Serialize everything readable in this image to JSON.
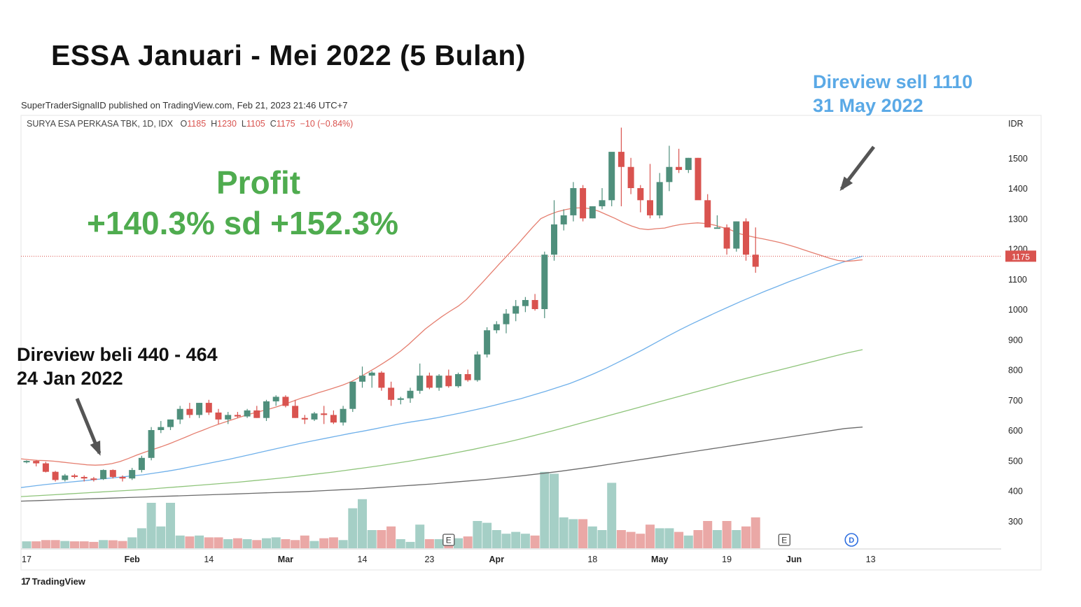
{
  "header": {
    "title": "ESSA Januari - Mei  2022 (5 Bulan)",
    "publisher": "SuperTraderSignalID published on TradingView.com, Feb 21, 2023 21:46 UTC+7",
    "symbol": "SURYA ESA PERKASA TBK, 1D, IDX",
    "ohlc_o_label": "O",
    "ohlc_o": "1185",
    "ohlc_h_label": "H",
    "ohlc_h": "1230",
    "ohlc_l_label": "L",
    "ohlc_l": "1105",
    "ohlc_c_label": "C",
    "ohlc_c": "1175",
    "ohlc_change": "−10 (−0.84%)"
  },
  "annotations": {
    "sell_line1": "Direview sell 1110",
    "sell_line2": "31 May 2022",
    "buy_line1": "Direview beli 440 - 464",
    "buy_line2": "24 Jan 2022",
    "profit_title": "Profit",
    "profit_range": "+140.3% sd +152.3%"
  },
  "footer": {
    "brand": "TradingView",
    "brand_mark": "17"
  },
  "colors": {
    "up": "#4f8f7c",
    "down": "#d9534f",
    "up_vol": "#a5cfc6",
    "down_vol": "#eaa8a6",
    "ma20": "#e57e6f",
    "ma50": "#6fb0ea",
    "ma100": "#8ec47a",
    "ma200": "#6b6b6b",
    "annotation_blue": "#5aa9e6",
    "profit_green": "#4fac4f"
  },
  "chart_data": {
    "type": "candlestick",
    "currency": "IDR",
    "ylim": [
      220,
      1600
    ],
    "y_ticks": [
      300,
      400,
      500,
      600,
      700,
      800,
      900,
      1000,
      1100,
      1200,
      1300,
      1400,
      1500
    ],
    "x_ticks": [
      {
        "label": "17",
        "i": 0
      },
      {
        "label": "Feb",
        "i": 11
      },
      {
        "label": "14",
        "i": 19
      },
      {
        "label": "Mar",
        "i": 27
      },
      {
        "label": "14",
        "i": 35
      },
      {
        "label": "23",
        "i": 42
      },
      {
        "label": "Apr",
        "i": 49
      },
      {
        "label": "18",
        "i": 59
      },
      {
        "label": "May",
        "i": 66
      },
      {
        "label": "19",
        "i": 73
      },
      {
        "label": "Jun",
        "i": 80
      },
      {
        "label": "13",
        "i": 88
      }
    ],
    "last_price": "1175",
    "last_price_value": 1175,
    "earnings_markers": [
      {
        "label": "E",
        "i": 44
      },
      {
        "label": "E",
        "i": 79
      }
    ],
    "dividend_marker": {
      "label": "D",
      "i": 86
    },
    "candles": [
      [
        495,
        500,
        490,
        498,
        38
      ],
      [
        498,
        500,
        480,
        490,
        38
      ],
      [
        490,
        495,
        460,
        462,
        45
      ],
      [
        462,
        465,
        430,
        435,
        45
      ],
      [
        435,
        455,
        430,
        450,
        40
      ],
      [
        450,
        455,
        440,
        445,
        38
      ],
      [
        445,
        450,
        430,
        440,
        38
      ],
      [
        440,
        445,
        430,
        438,
        35
      ],
      [
        438,
        470,
        435,
        468,
        45
      ],
      [
        468,
        470,
        440,
        445,
        44
      ],
      [
        445,
        450,
        430,
        440,
        40
      ],
      [
        440,
        475,
        435,
        468,
        60
      ],
      [
        468,
        515,
        460,
        508,
        110
      ],
      [
        508,
        610,
        500,
        600,
        250
      ],
      [
        600,
        630,
        590,
        610,
        120
      ],
      [
        610,
        635,
        600,
        635,
        250
      ],
      [
        635,
        680,
        620,
        670,
        70
      ],
      [
        670,
        690,
        640,
        650,
        65
      ],
      [
        650,
        690,
        640,
        690,
        70
      ],
      [
        690,
        700,
        650,
        658,
        60
      ],
      [
        658,
        670,
        620,
        635,
        60
      ],
      [
        635,
        660,
        620,
        650,
        50
      ],
      [
        650,
        660,
        640,
        645,
        55
      ],
      [
        645,
        670,
        640,
        665,
        50
      ],
      [
        665,
        680,
        640,
        640,
        45
      ],
      [
        640,
        700,
        630,
        695,
        55
      ],
      [
        695,
        715,
        680,
        710,
        60
      ],
      [
        710,
        715,
        675,
        680,
        50
      ],
      [
        680,
        700,
        640,
        640,
        45
      ],
      [
        640,
        650,
        620,
        635,
        70
      ],
      [
        635,
        660,
        630,
        655,
        40
      ],
      [
        655,
        680,
        620,
        650,
        55
      ],
      [
        650,
        665,
        620,
        625,
        60
      ],
      [
        625,
        680,
        615,
        670,
        45
      ],
      [
        670,
        760,
        660,
        760,
        220
      ],
      [
        760,
        810,
        740,
        780,
        270
      ],
      [
        780,
        795,
        740,
        790,
        100
      ],
      [
        790,
        795,
        730,
        740,
        100
      ],
      [
        740,
        760,
        680,
        700,
        120
      ],
      [
        700,
        710,
        685,
        705,
        50
      ],
      [
        705,
        740,
        690,
        730,
        35
      ],
      [
        730,
        820,
        720,
        780,
        130
      ],
      [
        780,
        790,
        735,
        740,
        50
      ],
      [
        740,
        785,
        730,
        780,
        50
      ],
      [
        780,
        800,
        740,
        745,
        50
      ],
      [
        745,
        790,
        740,
        785,
        55
      ],
      [
        785,
        800,
        760,
        765,
        65
      ],
      [
        765,
        860,
        760,
        850,
        150
      ],
      [
        850,
        940,
        840,
        930,
        140
      ],
      [
        930,
        960,
        920,
        950,
        100
      ],
      [
        950,
        1000,
        920,
        985,
        80
      ],
      [
        985,
        1030,
        960,
        1010,
        90
      ],
      [
        1010,
        1040,
        990,
        1030,
        80
      ],
      [
        1030,
        1050,
        995,
        1000,
        70
      ],
      [
        1000,
        1190,
        970,
        1180,
        420
      ],
      [
        1180,
        1360,
        1160,
        1280,
        410
      ],
      [
        1280,
        1330,
        1260,
        1310,
        170
      ],
      [
        1310,
        1420,
        1290,
        1400,
        160
      ],
      [
        1400,
        1410,
        1290,
        1300,
        160
      ],
      [
        1300,
        1340,
        1300,
        1340,
        120
      ],
      [
        1340,
        1400,
        1330,
        1360,
        100
      ],
      [
        1360,
        1510,
        1340,
        1520,
        360
      ],
      [
        1520,
        1600,
        1340,
        1470,
        100
      ],
      [
        1470,
        1500,
        1380,
        1400,
        90
      ],
      [
        1400,
        1410,
        1320,
        1360,
        80
      ],
      [
        1360,
        1480,
        1300,
        1310,
        130
      ],
      [
        1310,
        1450,
        1300,
        1420,
        110
      ],
      [
        1420,
        1540,
        1390,
        1470,
        110
      ],
      [
        1470,
        1530,
        1450,
        1460,
        90
      ],
      [
        1460,
        1500,
        1450,
        1500,
        70
      ],
      [
        1500,
        1500,
        1370,
        1360,
        100
      ],
      [
        1360,
        1380,
        1270,
        1270,
        150
      ],
      [
        1270,
        1310,
        1270,
        1270,
        100
      ],
      [
        1270,
        1280,
        1180,
        1200,
        150
      ],
      [
        1200,
        1290,
        1190,
        1290,
        100
      ],
      [
        1290,
        1300,
        1160,
        1180,
        120
      ],
      [
        1180,
        1270,
        1120,
        1140,
        170
      ]
    ],
    "ma20": [
      505,
      502,
      500,
      499,
      497,
      494,
      491,
      488,
      485,
      484,
      485,
      489,
      496,
      506,
      517,
      527,
      536,
      545,
      555,
      566,
      577,
      589,
      599,
      610,
      620,
      629,
      638,
      647,
      655,
      662,
      669,
      677,
      686,
      696,
      706,
      714,
      723,
      731,
      740,
      749,
      760,
      774,
      790,
      806,
      823,
      841,
      861,
      884,
      909,
      934,
      955,
      975,
      993,
      1010,
      1032,
      1061,
      1090,
      1120,
      1150,
      1179,
      1208,
      1239,
      1270,
      1299,
      1312,
      1322,
      1329,
      1334,
      1335,
      1332,
      1324,
      1312,
      1300,
      1286,
      1275,
      1266,
      1263,
      1266,
      1268,
      1275,
      1280,
      1283,
      1285,
      1283,
      1278,
      1270,
      1262,
      1250,
      1243,
      1237,
      1232,
      1226,
      1220,
      1212,
      1204,
      1195,
      1186,
      1177,
      1168,
      1161,
      1158,
      1160,
      1163
    ],
    "ma50": [
      410,
      415,
      420,
      424,
      428,
      432,
      436,
      440,
      444,
      448,
      452,
      458,
      464,
      471,
      479,
      487,
      495,
      503,
      512,
      521,
      530,
      539,
      548,
      557,
      565,
      573,
      581,
      589,
      596,
      604,
      612,
      620,
      627,
      633,
      640,
      648,
      656,
      665,
      674,
      684,
      694,
      704,
      716,
      728,
      741,
      754,
      770,
      787,
      805,
      825,
      845,
      866,
      888,
      910,
      931,
      951,
      970,
      989,
      1007,
      1025,
      1042,
      1059,
      1075,
      1091,
      1106,
      1121,
      1136,
      1150,
      1163,
      1175
    ],
    "ma100": [
      380,
      383,
      386,
      389,
      392,
      395,
      398,
      401,
      404,
      408,
      412,
      416,
      420,
      424,
      428,
      433,
      438,
      443,
      449,
      455,
      461,
      468,
      475,
      482,
      490,
      498,
      507,
      516,
      526,
      536,
      547,
      558,
      570,
      583,
      596,
      610,
      624,
      638,
      652,
      666,
      680,
      694,
      708,
      722,
      736,
      750,
      764,
      777,
      790,
      803,
      816,
      829,
      842,
      855,
      866
    ],
    "ma200": [
      365,
      367,
      369,
      371,
      373,
      375,
      377,
      379,
      381,
      383,
      385,
      387,
      389,
      391,
      393,
      395,
      397,
      400,
      403,
      406,
      410,
      414,
      418,
      422,
      427,
      432,
      437,
      443,
      449,
      456,
      463,
      471,
      479,
      488,
      497,
      506,
      515,
      524,
      533,
      542,
      551,
      560,
      569,
      578,
      587,
      596,
      605,
      610
    ]
  }
}
